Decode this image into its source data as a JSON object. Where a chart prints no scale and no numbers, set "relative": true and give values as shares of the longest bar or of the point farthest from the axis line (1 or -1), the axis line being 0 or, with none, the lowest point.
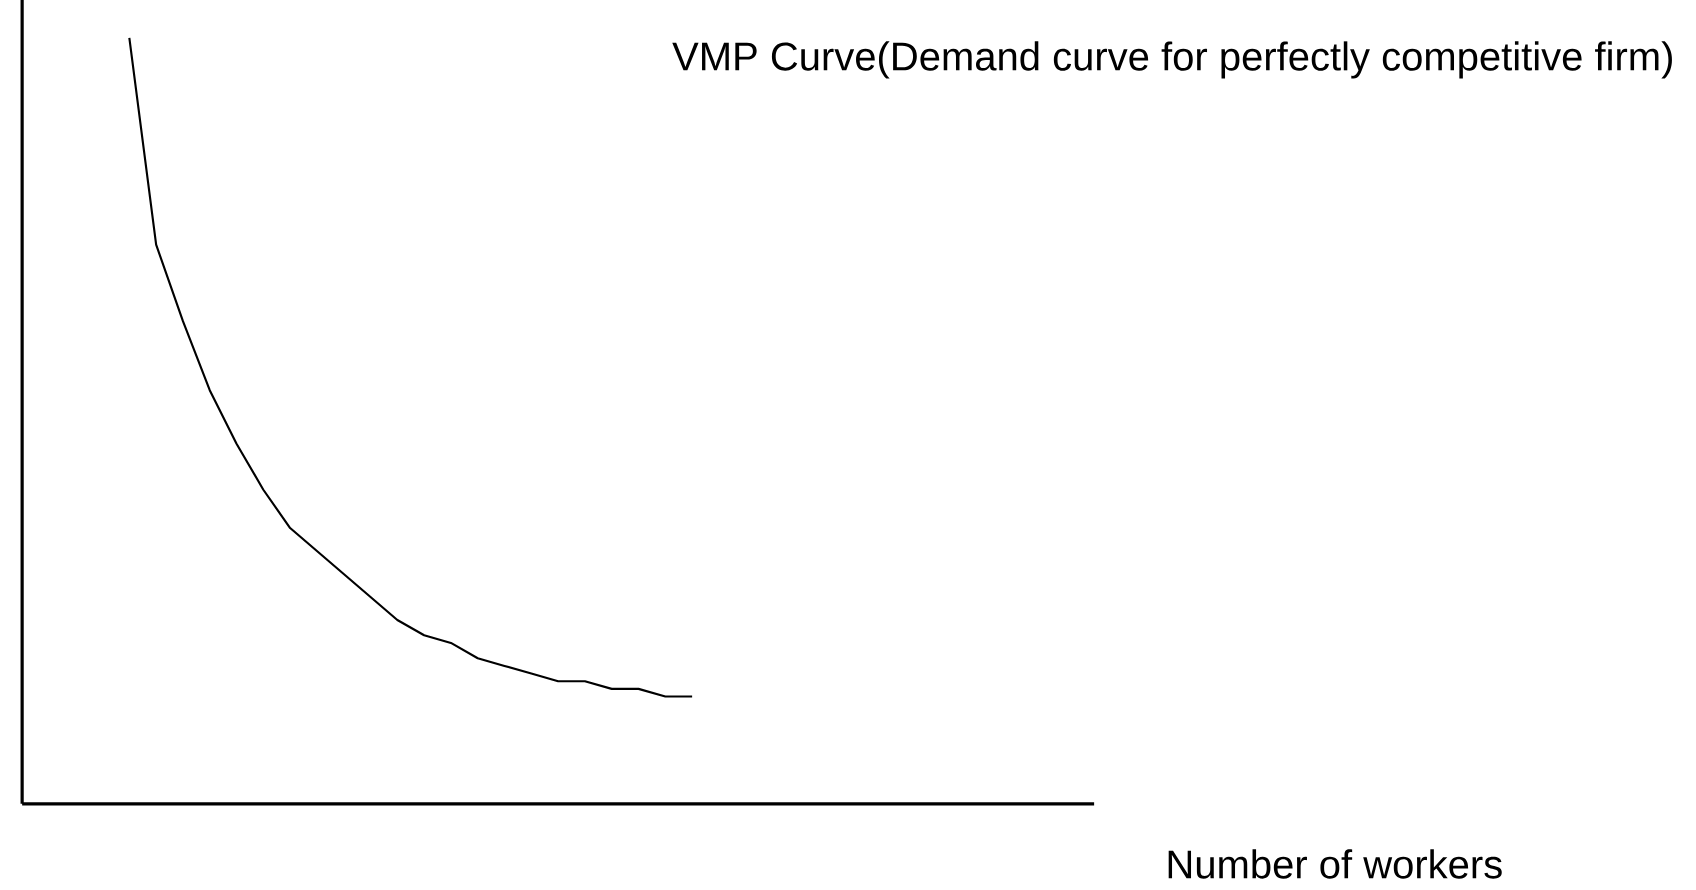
{
  "chart_data": {
    "type": "line",
    "title": "VMP Curve(Demand curve for perfectly competitive firm)",
    "xlabel": "Number of workers",
    "relative": true,
    "categories": [
      null,
      null,
      null,
      null,
      null,
      null,
      null,
      null,
      null,
      null,
      null,
      null,
      null,
      null,
      null,
      null,
      null,
      null,
      null,
      null,
      null,
      null,
      null,
      null,
      null,
      null,
      null,
      null,
      null,
      null,
      null,
      null,
      null,
      null,
      null,
      null,
      null,
      null,
      null,
      null,
      null
    ],
    "series": [
      {
        "color": "#000000",
        "values": [
          null,
          null,
          null,
          null,
          1,
          0.73,
          0.63,
          0.54,
          0.47,
          0.41,
          0.36,
          0.33,
          0.3,
          0.27,
          0.24,
          0.22,
          0.21,
          0.19,
          0.18,
          0.17,
          0.16,
          0.16,
          0.15,
          0.15,
          0.14,
          0.14,
          null,
          null,
          null,
          null,
          null,
          null,
          null,
          null,
          null,
          null,
          null,
          null,
          null,
          null,
          null
        ]
      }
    ],
    "marker": "none",
    "line_style": "solid"
  }
}
